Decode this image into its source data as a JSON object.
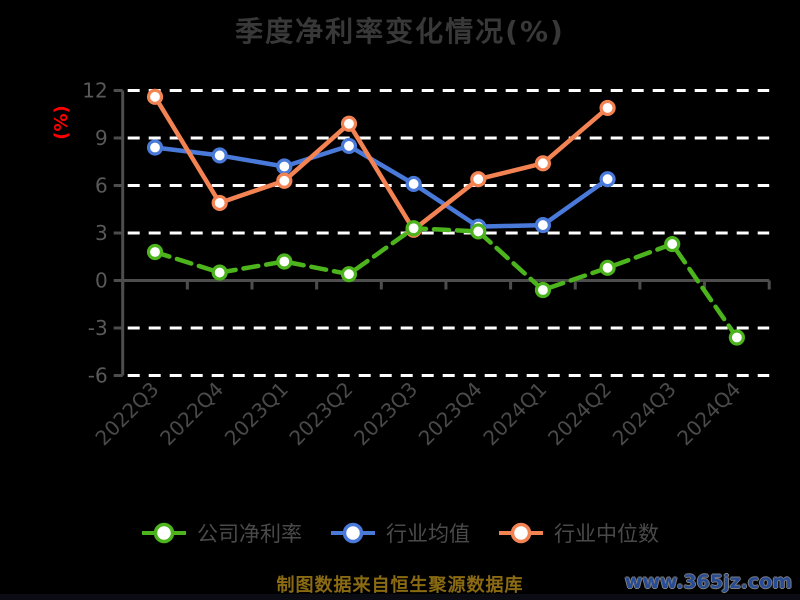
{
  "footer": {
    "source_note": "制图数据来自恒生聚源数据库",
    "watermark": "www.365jz.com"
  },
  "colors": {
    "background": "#000000",
    "title_text": "#383838",
    "axis_line": "#4d4d4d",
    "y_tick_label": "#595959",
    "x_tick_label": "#4a4a4a",
    "grid_line": "#ffffff",
    "y_axis_name": "#ff0000",
    "legend_text": "#4a4a4a",
    "source_note": "#8a6a12",
    "watermark": "#274b94"
  },
  "chart_data": {
    "type": "line",
    "title": "季度净利率变化情况(%)",
    "ylabel": "(%)",
    "xlabel": "",
    "ylim": [
      -6,
      12
    ],
    "yticks": [
      -6,
      -3,
      0,
      3,
      6,
      9,
      12
    ],
    "grid": true,
    "grid_style": "dashed-white",
    "legend_position": "bottom",
    "marker": "circle-white-fill",
    "categories": [
      "2022Q3",
      "2022Q4",
      "2023Q1",
      "2023Q2",
      "2023Q3",
      "2023Q4",
      "2024Q1",
      "2024Q2",
      "2024Q3",
      "2024Q4"
    ],
    "series": [
      {
        "name": "公司净利率",
        "slug": "company-net-margin",
        "color": "#4cb41c",
        "line_style": "dashed",
        "values": [
          1.8,
          0.5,
          1.2,
          0.4,
          3.3,
          3.1,
          -0.6,
          0.8,
          2.3,
          -3.6
        ]
      },
      {
        "name": "行业均值",
        "slug": "industry-mean",
        "color": "#4979d9",
        "line_style": "solid",
        "values": [
          8.4,
          7.9,
          7.2,
          8.5,
          6.1,
          3.4,
          3.5,
          6.4,
          null,
          null
        ]
      },
      {
        "name": "行业中位数",
        "slug": "industry-median",
        "color": "#f48353",
        "line_style": "solid",
        "values": [
          11.6,
          4.9,
          6.3,
          9.9,
          3.2,
          6.4,
          7.4,
          10.9,
          null,
          null
        ]
      }
    ]
  }
}
